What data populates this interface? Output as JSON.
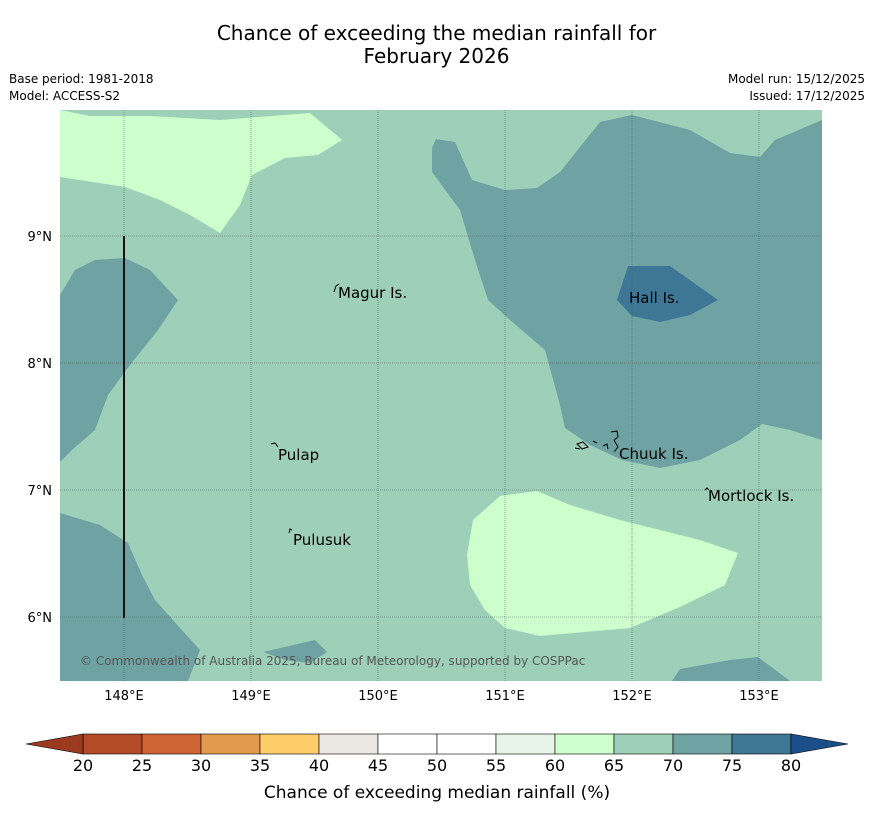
{
  "title": {
    "line1": "Chance of exceeding the median rainfall for",
    "line2": "February 2026"
  },
  "meta": {
    "base_period": "Base period: 1981-2018",
    "model": "Model: ACCESS-S2",
    "model_run": "Model run: 15/12/2025",
    "issued": "Issued: 17/12/2025"
  },
  "colors": {
    "band_60_65": "#ccffcc",
    "band_65_70": "#9ecfb9",
    "band_70_75": "#6fa3a3",
    "band_75_80": "#3e7795",
    "grid": "#3c5a50"
  },
  "map": {
    "lat_labels": [
      "9°N",
      "8°N",
      "7°N",
      "6°N"
    ],
    "lon_labels": [
      "148°E",
      "149°E",
      "150°E",
      "151°E",
      "152°E",
      "153°E"
    ],
    "places": [
      {
        "id": "magur",
        "label": "Magur Is."
      },
      {
        "id": "hall",
        "label": "Hall Is."
      },
      {
        "id": "pulap",
        "label": "Pulap"
      },
      {
        "id": "chuuk",
        "label": "Chuuk Is."
      },
      {
        "id": "mortlock",
        "label": "Mortlock Is."
      },
      {
        "id": "pulusuk",
        "label": "Pulusuk"
      }
    ],
    "copyright": "© Commonwealth of Australia 2025, Bureau of Meteorology, supported by COSPPac"
  },
  "colorbar": {
    "ticks": [
      "20",
      "25",
      "30",
      "35",
      "40",
      "45",
      "50",
      "55",
      "60",
      "65",
      "70",
      "75",
      "80"
    ],
    "colors": [
      "#b34a28",
      "#cf6535",
      "#e39a4c",
      "#fdcd69",
      "#ebe8e4",
      "#ffffff",
      "#ffffff",
      "#e8f4e8",
      "#ccffcc",
      "#9ecfb9",
      "#6fa3a3",
      "#3e7795"
    ],
    "under_color": "#9c3a20",
    "over_color": "#1a4f8a",
    "label": "Chance of exceeding median rainfall (%)"
  }
}
